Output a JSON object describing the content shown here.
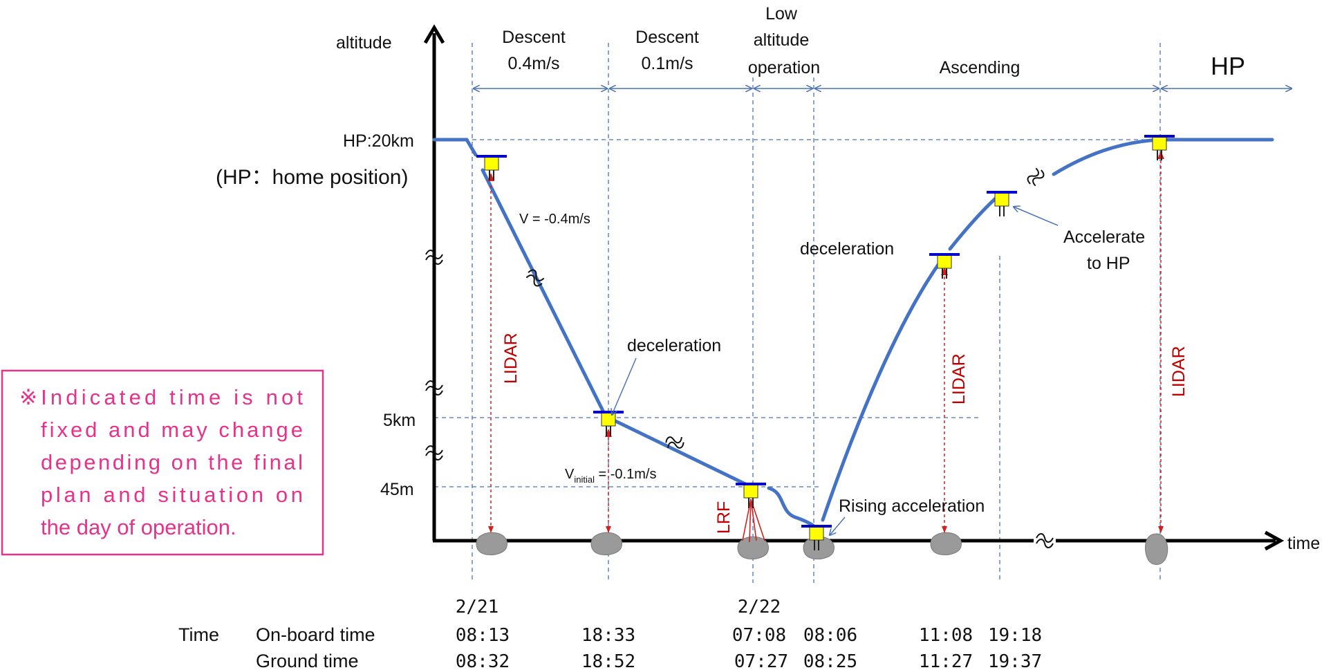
{
  "axes": {
    "y_label": "altitude",
    "x_label": "time"
  },
  "phases": {
    "descent_fast": [
      "Descent",
      "0.4m/s"
    ],
    "descent_slow": [
      "Descent",
      "0.1m/s"
    ],
    "low_altitude": [
      "Low",
      "altitude",
      "operation"
    ],
    "ascending": "Ascending",
    "hp": "HP"
  },
  "altitudes": {
    "hp": "HP:20km",
    "hp_note": "(HP：home position)",
    "km5": "5km",
    "m45": "45m"
  },
  "annotations": {
    "v_fast": "V = -0.4m/s",
    "v_initial_base": "V",
    "v_initial_sub": "initial",
    "v_initial_value": " = -0.1m/s",
    "decel_1": "deceleration",
    "decel_2": "deceleration",
    "accel_hp": [
      "Accelerate",
      "to HP"
    ],
    "rising": "Rising acceleration",
    "lrf": "LRF",
    "lidar": "LIDAR"
  },
  "note": [
    "※Indicated time is not",
    "fixed and may change",
    "depending on the final",
    "plan and situation on",
    "the day of operation."
  ],
  "colors": {
    "trajectory": "#4472c4",
    "guide": "#4a72b8",
    "lidar": "#c00000",
    "note": "#e8318a",
    "spacecraft": "#ffff00",
    "panel": "#0000cc",
    "rock": "#9a9a9a"
  },
  "timeline": {
    "dates": [
      "2/21",
      "2/22"
    ],
    "header": "Time",
    "onboard_label": "On-board time",
    "ground_label": "Ground time",
    "onboard": [
      "08:13",
      "18:33",
      "07:08",
      "08:06",
      "11:08",
      "19:18"
    ],
    "ground": [
      "08:32",
      "18:52",
      "07:27",
      "08:25",
      "11:27",
      "19:37"
    ]
  }
}
